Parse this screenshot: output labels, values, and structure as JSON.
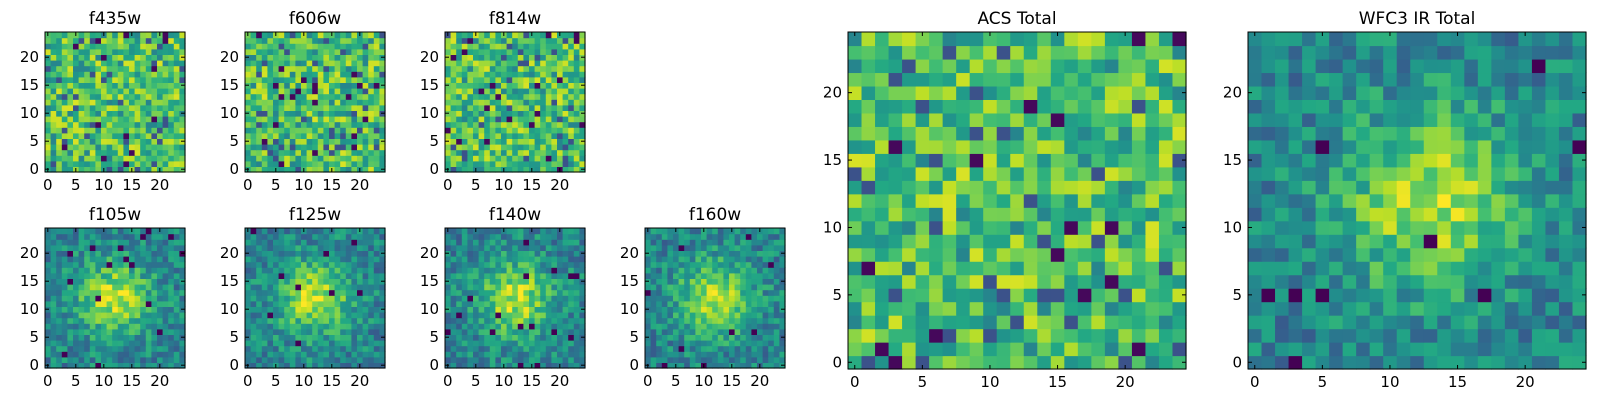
{
  "chart_data": [
    {
      "type": "heatmap",
      "title": "f435w",
      "colormap": "viridis",
      "extent": [
        0,
        25,
        0,
        25
      ],
      "xticks": [
        0,
        5,
        10,
        15,
        20
      ],
      "yticks": [
        0,
        5,
        10,
        15,
        20
      ],
      "xtick_labels": [
        "0",
        "5",
        "10",
        "15",
        "20"
      ],
      "ytick_labels": [
        "0",
        "5",
        "10",
        "15",
        "20"
      ],
      "pattern": "noise",
      "seed": 11
    },
    {
      "type": "heatmap",
      "title": "f606w",
      "colormap": "viridis",
      "extent": [
        0,
        25,
        0,
        25
      ],
      "xticks": [
        0,
        5,
        10,
        15,
        20
      ],
      "yticks": [
        0,
        5,
        10,
        15,
        20
      ],
      "xtick_labels": [
        "0",
        "5",
        "10",
        "15",
        "20"
      ],
      "ytick_labels": [
        "0",
        "5",
        "10",
        "15",
        "20"
      ],
      "pattern": "noise",
      "seed": 23
    },
    {
      "type": "heatmap",
      "title": "f814w",
      "colormap": "viridis",
      "extent": [
        0,
        25,
        0,
        25
      ],
      "xticks": [
        0,
        5,
        10,
        15,
        20
      ],
      "yticks": [
        0,
        5,
        10,
        15,
        20
      ],
      "xtick_labels": [
        "0",
        "5",
        "10",
        "15",
        "20"
      ],
      "ytick_labels": [
        "0",
        "5",
        "10",
        "15",
        "20"
      ],
      "pattern": "noise",
      "seed": 37
    },
    {
      "type": "heatmap",
      "title": "f105w",
      "colormap": "viridis",
      "extent": [
        0,
        25,
        0,
        25
      ],
      "xticks": [
        0,
        5,
        10,
        15,
        20
      ],
      "yticks": [
        0,
        5,
        10,
        15,
        20
      ],
      "xtick_labels": [
        "0",
        "5",
        "10",
        "15",
        "20"
      ],
      "ytick_labels": [
        "0",
        "5",
        "10",
        "15",
        "20"
      ],
      "pattern": "source",
      "source_center": [
        12,
        12
      ],
      "seed": 41
    },
    {
      "type": "heatmap",
      "title": "f125w",
      "colormap": "viridis",
      "extent": [
        0,
        25,
        0,
        25
      ],
      "xticks": [
        0,
        5,
        10,
        15,
        20
      ],
      "yticks": [
        0,
        5,
        10,
        15,
        20
      ],
      "xtick_labels": [
        "0",
        "5",
        "10",
        "15",
        "20"
      ],
      "ytick_labels": [
        "0",
        "5",
        "10",
        "15",
        "20"
      ],
      "pattern": "source",
      "source_center": [
        12,
        12
      ],
      "seed": 53
    },
    {
      "type": "heatmap",
      "title": "f140w",
      "colormap": "viridis",
      "extent": [
        0,
        25,
        0,
        25
      ],
      "xticks": [
        0,
        5,
        10,
        15,
        20
      ],
      "yticks": [
        0,
        5,
        10,
        15,
        20
      ],
      "xtick_labels": [
        "0",
        "5",
        "10",
        "15",
        "20"
      ],
      "ytick_labels": [
        "0",
        "5",
        "10",
        "15",
        "20"
      ],
      "pattern": "source",
      "source_center": [
        12,
        12
      ],
      "seed": 67
    },
    {
      "type": "heatmap",
      "title": "f160w",
      "colormap": "viridis",
      "extent": [
        0,
        25,
        0,
        25
      ],
      "xticks": [
        0,
        5,
        10,
        15,
        20
      ],
      "yticks": [
        0,
        5,
        10,
        15,
        20
      ],
      "xtick_labels": [
        "0",
        "5",
        "10",
        "15",
        "20"
      ],
      "ytick_labels": [
        "0",
        "5",
        "10",
        "15",
        "20"
      ],
      "pattern": "source",
      "source_center": [
        12,
        12
      ],
      "seed": 79
    },
    {
      "type": "heatmap",
      "title": "ACS Total",
      "colormap": "viridis",
      "extent": [
        0,
        25,
        0,
        25
      ],
      "xticks": [
        0,
        5,
        10,
        15,
        20
      ],
      "yticks": [
        0,
        5,
        10,
        15,
        20
      ],
      "xtick_labels": [
        "0",
        "5",
        "10",
        "15",
        "20"
      ],
      "ytick_labels": [
        "0",
        "5",
        "10",
        "15",
        "20"
      ],
      "pattern": "noise",
      "seed": 91
    },
    {
      "type": "heatmap",
      "title": "WFC3 IR Total",
      "colormap": "viridis",
      "extent": [
        0,
        25,
        0,
        25
      ],
      "xticks": [
        0,
        5,
        10,
        15,
        20
      ],
      "yticks": [
        0,
        5,
        10,
        15,
        20
      ],
      "xtick_labels": [
        "0",
        "5",
        "10",
        "15",
        "20"
      ],
      "ytick_labels": [
        "0",
        "5",
        "10",
        "15",
        "20"
      ],
      "pattern": "source",
      "source_center": [
        13,
        12
      ],
      "seed": 103
    }
  ]
}
